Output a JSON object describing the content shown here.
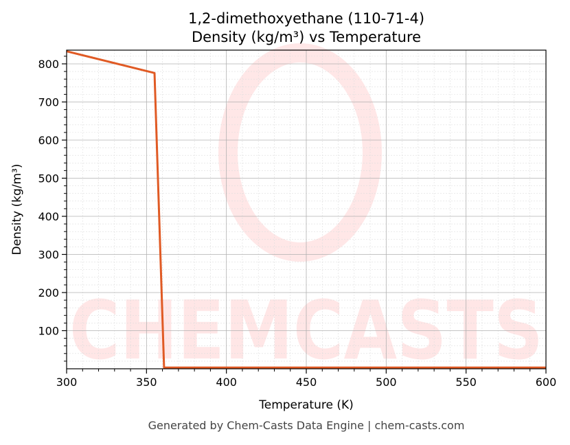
{
  "chart_data": {
    "type": "line",
    "title": "1,2-dimethoxyethane (110-71-4)",
    "subtitle": "Density (kg/m³) vs Temperature",
    "xlabel": "Temperature (K)",
    "ylabel": "Density (kg/m³)",
    "xlim": [
      300,
      600
    ],
    "ylim": [
      0,
      836
    ],
    "xticks": [
      300,
      350,
      400,
      450,
      500,
      550,
      600
    ],
    "yticks": [
      100,
      200,
      300,
      400,
      500,
      600,
      700,
      800
    ],
    "grid": true,
    "color": "#e05a24",
    "series": [
      {
        "x": [
          300,
          355,
          361,
          400,
          450,
          500,
          550,
          600
        ],
        "y": [
          833,
          776,
          3,
          3,
          3,
          3,
          3,
          3
        ]
      }
    ]
  },
  "watermark": "CHEMCASTS",
  "footer": "Generated by Chem-Casts Data Engine | chem-casts.com"
}
